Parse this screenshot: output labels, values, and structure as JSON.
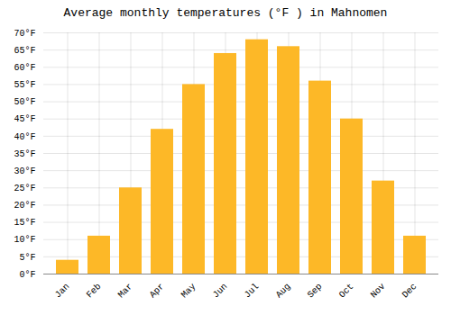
{
  "chart_data": {
    "type": "bar",
    "title": "Average monthly temperatures (°F ) in Mahnomen",
    "categories": [
      "Jan",
      "Feb",
      "Mar",
      "Apr",
      "May",
      "Jun",
      "Jul",
      "Aug",
      "Sep",
      "Oct",
      "Nov",
      "Dec"
    ],
    "values": [
      4,
      11,
      25,
      42,
      55,
      64,
      68,
      66,
      56,
      45,
      27,
      11
    ],
    "color": "#FDB827",
    "ylim": [
      0,
      70
    ],
    "yticks": [
      {
        "value": 0,
        "label": "0°F"
      },
      {
        "value": 5,
        "label": "5°F"
      },
      {
        "value": 10,
        "label": "10°F"
      },
      {
        "value": 15,
        "label": "15°F"
      },
      {
        "value": 20,
        "label": "20°F"
      },
      {
        "value": 25,
        "label": "25°F"
      },
      {
        "value": 30,
        "label": "30°F"
      },
      {
        "value": 35,
        "label": "35°F"
      },
      {
        "value": 40,
        "label": "40°F"
      },
      {
        "value": 45,
        "label": "45°F"
      },
      {
        "value": 50,
        "label": "50°F"
      },
      {
        "value": 55,
        "label": "55°F"
      },
      {
        "value": 60,
        "label": "60°F"
      },
      {
        "value": 65,
        "label": "65°F"
      },
      {
        "value": 70,
        "label": "70°F"
      }
    ],
    "grid": true
  }
}
